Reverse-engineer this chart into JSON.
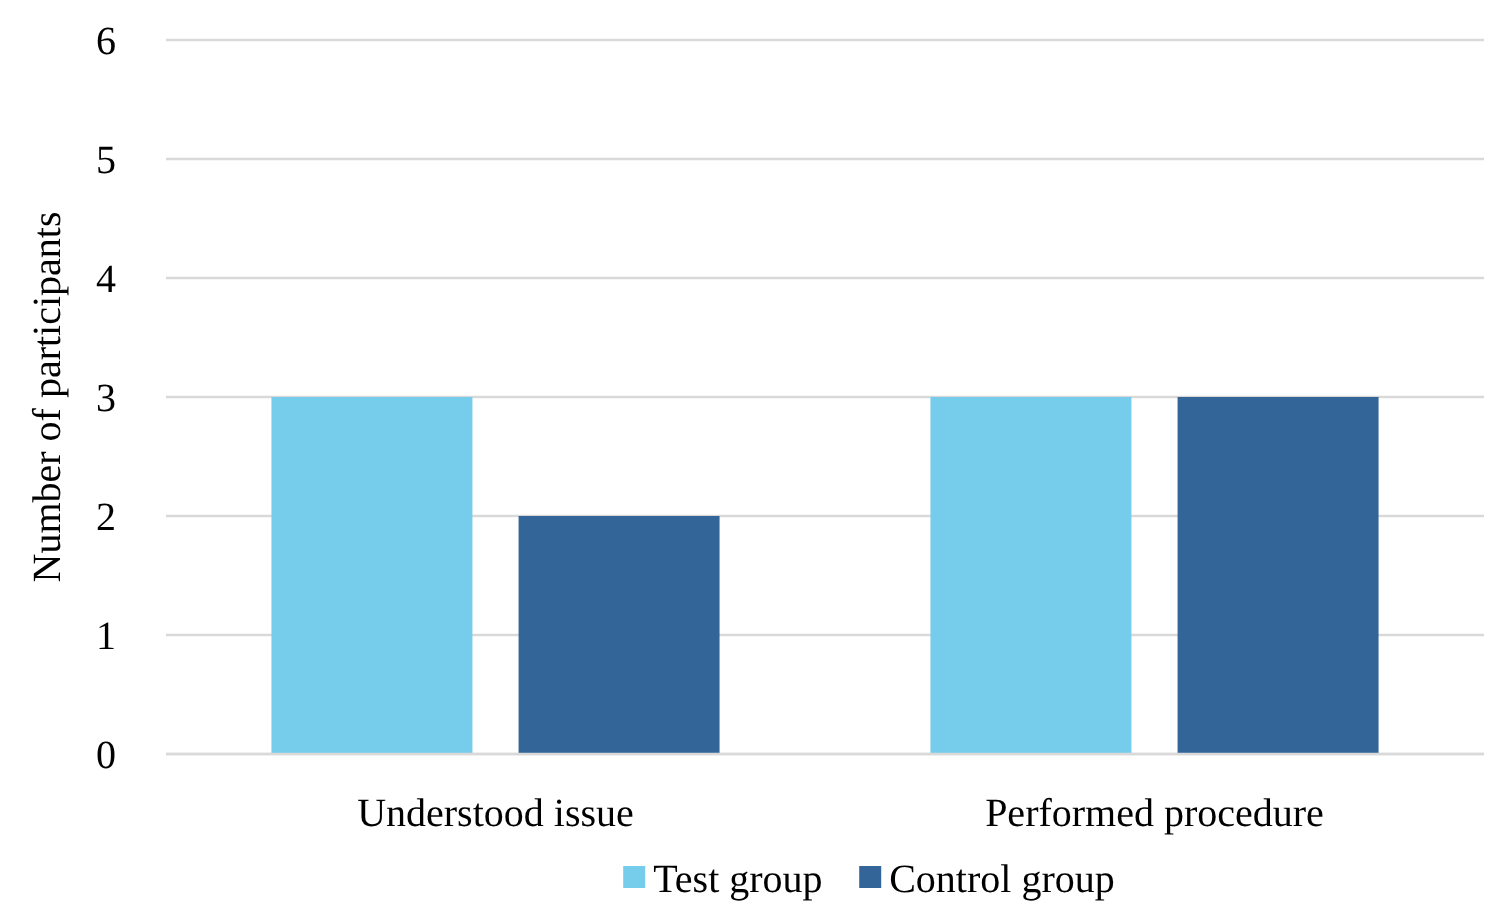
{
  "chart_data": {
    "type": "bar",
    "ylabel": "Number of participants",
    "categories": [
      "Understood issue",
      "Performed procedure"
    ],
    "series": [
      {
        "name": "Test group",
        "color": "#75cdeb",
        "values": [
          3,
          3
        ]
      },
      {
        "name": "Control group",
        "color": "#336598",
        "values": [
          2,
          3
        ]
      }
    ],
    "ylim": [
      0,
      6
    ],
    "yticks": [
      0,
      1,
      2,
      3,
      4,
      5,
      6
    ],
    "grid": "y",
    "legend": "bottom"
  }
}
